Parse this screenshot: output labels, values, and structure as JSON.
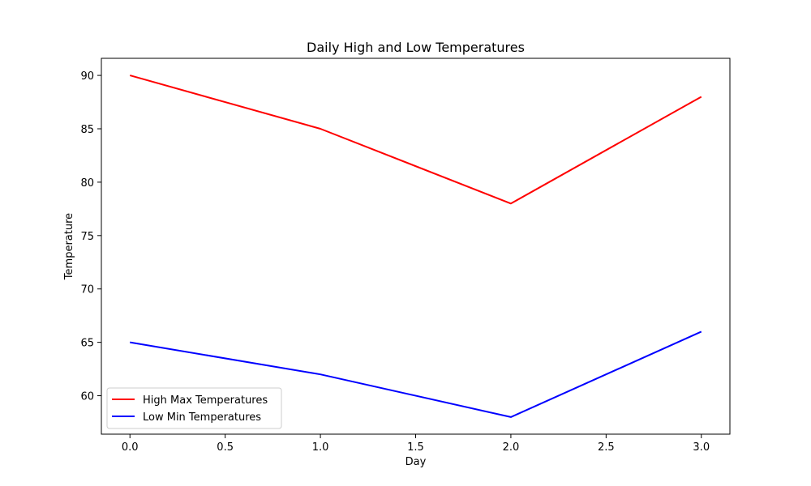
{
  "chart_data": {
    "type": "line",
    "title": "Daily High and Low Temperatures",
    "xlabel": "Day",
    "ylabel": "Temperature",
    "x": [
      0,
      1,
      2,
      3
    ],
    "xlim": [
      -0.15,
      3.15
    ],
    "ylim": [
      56.4,
      91.6
    ],
    "xticks": [
      0.0,
      0.5,
      1.0,
      1.5,
      2.0,
      2.5,
      3.0
    ],
    "xtick_labels": [
      "0.0",
      "0.5",
      "1.0",
      "1.5",
      "2.0",
      "2.5",
      "3.0"
    ],
    "yticks": [
      60,
      65,
      70,
      75,
      80,
      85,
      90
    ],
    "ytick_labels": [
      "60",
      "65",
      "70",
      "75",
      "80",
      "85",
      "90"
    ],
    "grid": false,
    "legend_position": "lower-left",
    "series": [
      {
        "name": "High Max Temperatures",
        "color": "#ff0000",
        "values": [
          90,
          85,
          78,
          88
        ]
      },
      {
        "name": "Low Min Temperatures",
        "color": "#0000ff",
        "values": [
          65,
          62,
          58,
          66
        ]
      }
    ]
  }
}
